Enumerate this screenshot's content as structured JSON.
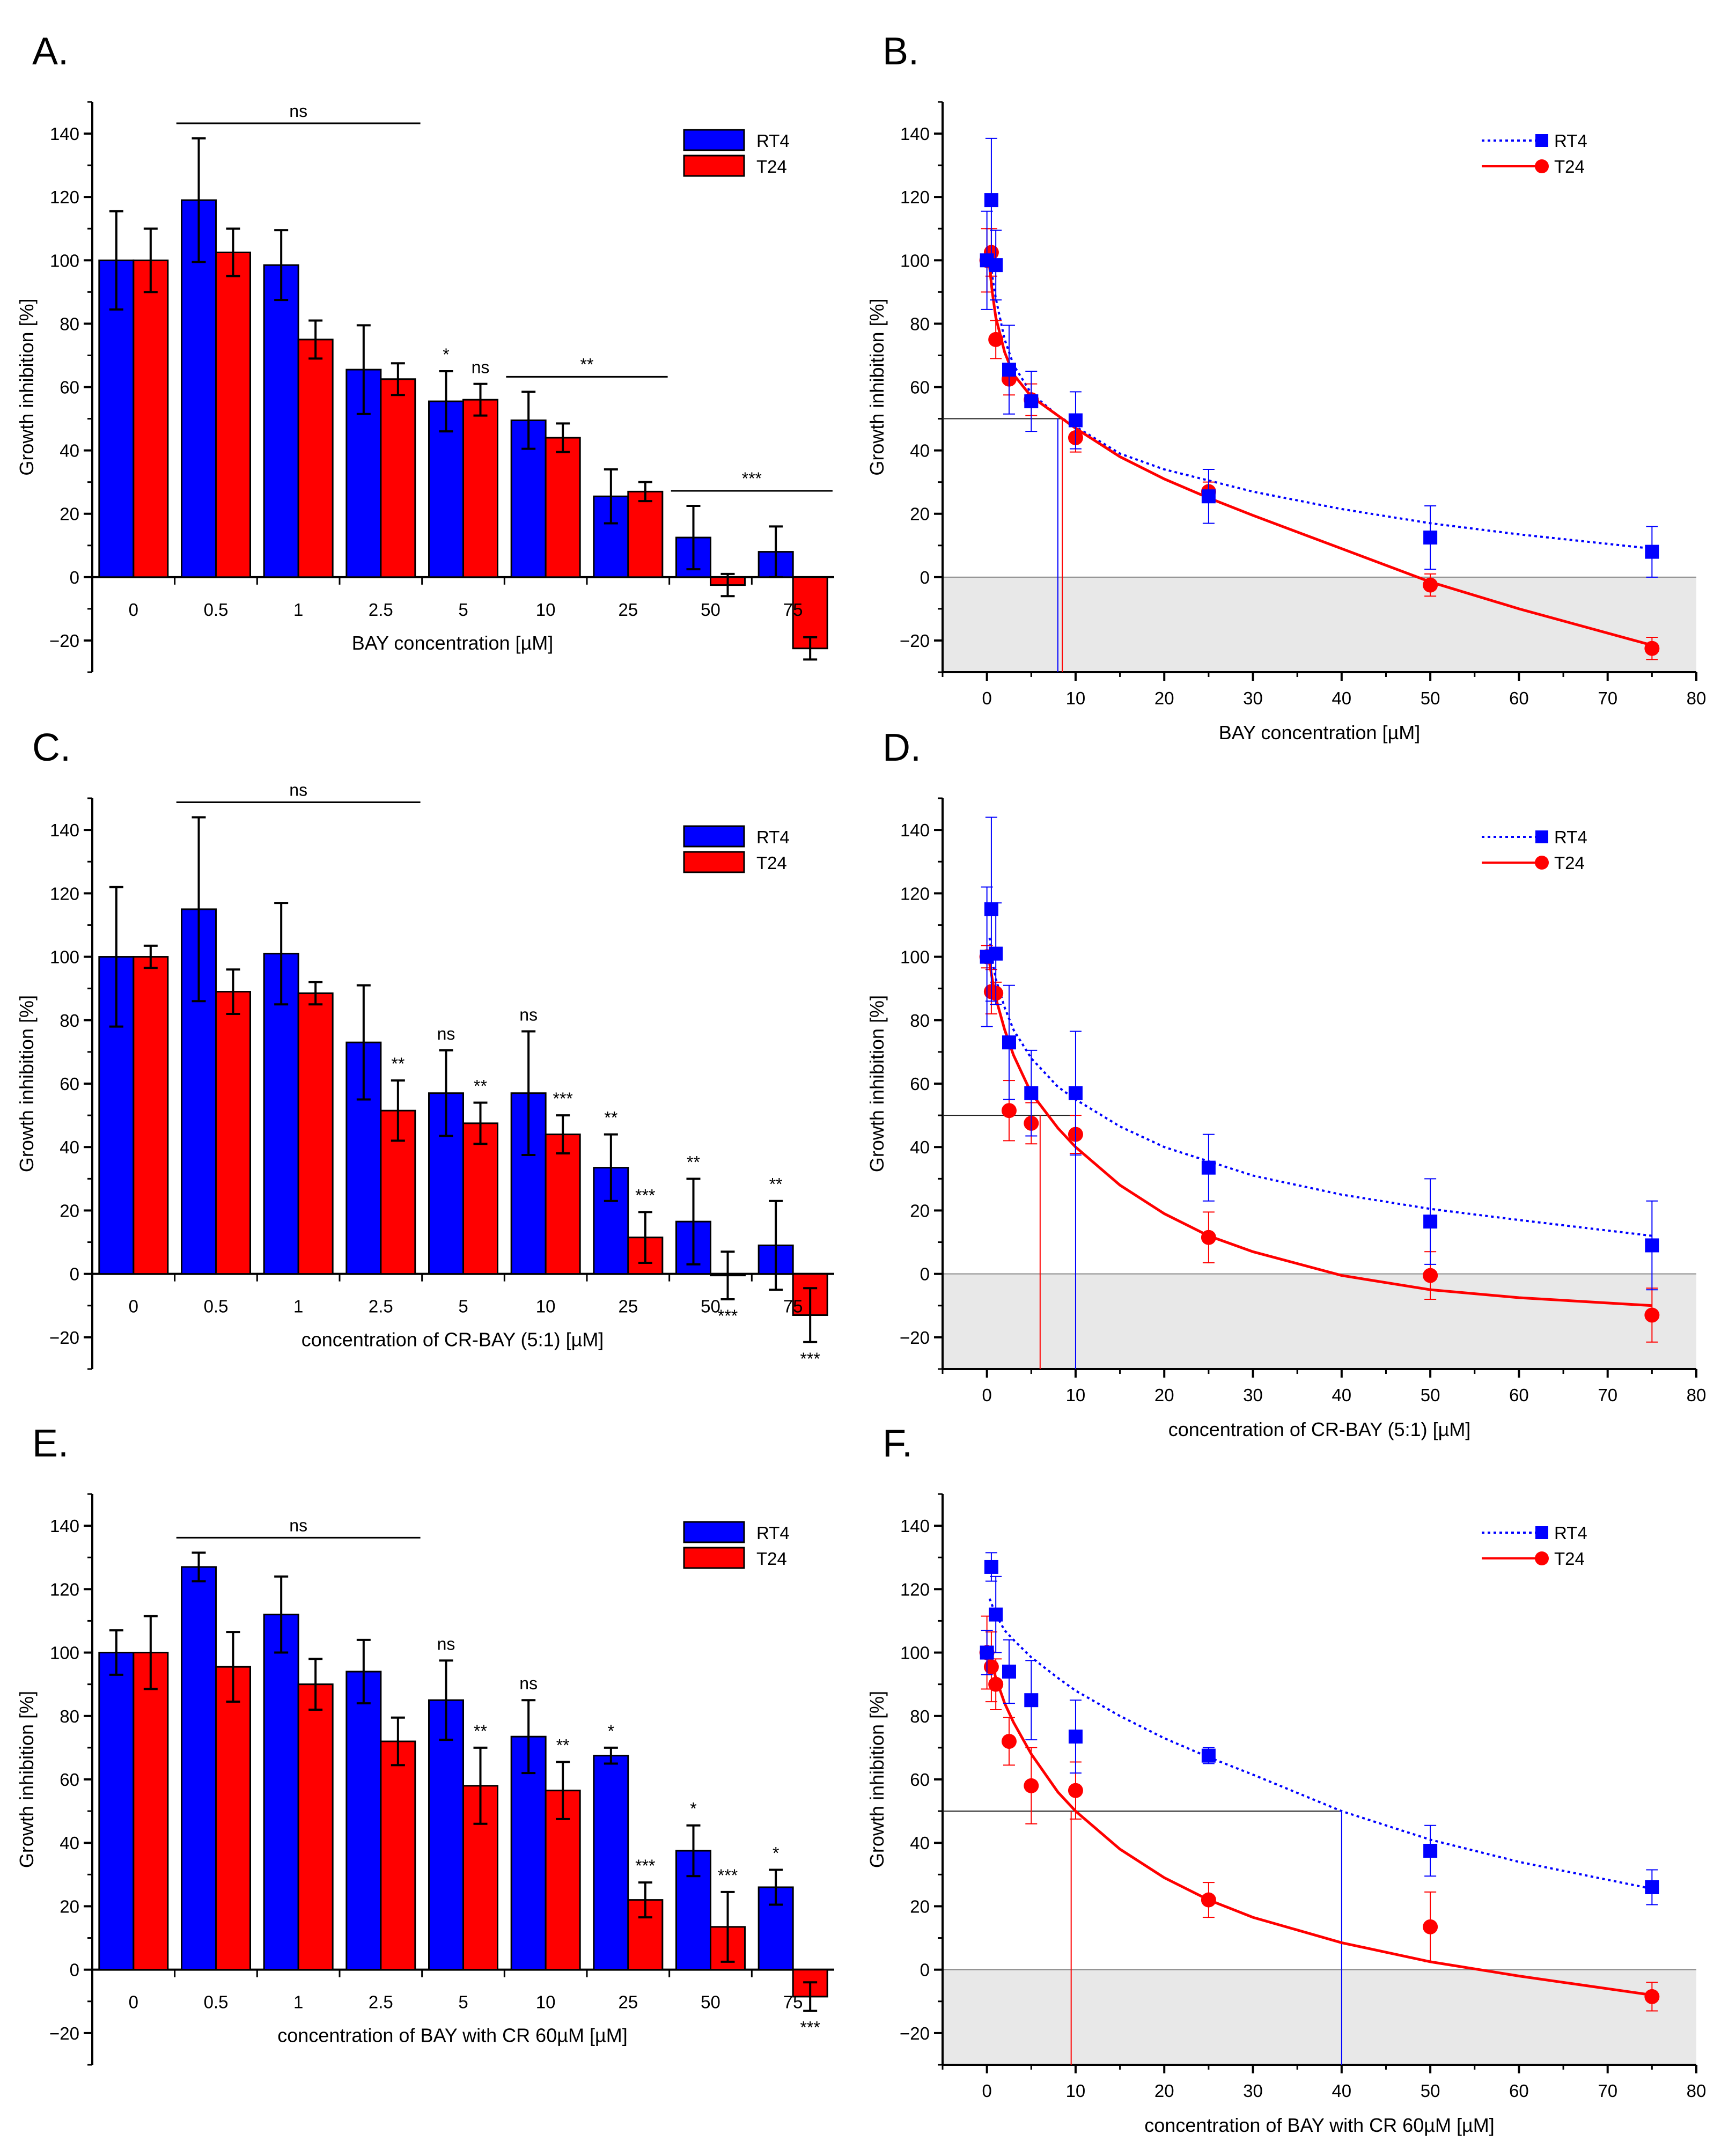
{
  "colors": {
    "rt4": "#0000ff",
    "t24": "#ff0000",
    "shade": "#e8e8e8"
  },
  "chart_data": [
    {
      "panel": "A.",
      "type": "bar",
      "xlabel": "BAY concentration [µM]",
      "ylabel": "Growth inhibition [%]",
      "ylim": [
        -30,
        150
      ],
      "yticks": [
        -20,
        0,
        20,
        40,
        60,
        80,
        100,
        120,
        140
      ],
      "categories": [
        "0",
        "0.5",
        "1",
        "2.5",
        "5",
        "10",
        "25",
        "50",
        "75"
      ],
      "legend_position": "top-right",
      "series": [
        {
          "name": "RT4",
          "values": [
            100,
            119,
            98.5,
            65.5,
            55.5,
            49.5,
            25.5,
            12.5,
            8
          ],
          "errors": [
            15.5,
            19.5,
            11,
            14,
            9.5,
            9,
            8.5,
            10,
            8
          ]
        },
        {
          "name": "T24",
          "values": [
            100,
            102.5,
            75,
            62.5,
            56,
            44,
            27,
            -2.5,
            -22.5
          ],
          "errors": [
            10,
            7.5,
            6,
            5,
            5,
            4.5,
            3,
            3.5,
            3.5
          ]
        }
      ],
      "annotations": [
        {
          "text": "ns",
          "bracket": [
            1,
            3
          ]
        },
        {
          "text": "*",
          "cat": 4,
          "series": 0
        },
        {
          "text": "ns",
          "cat": 4,
          "series": 1
        },
        {
          "text": "**",
          "bracket": [
            5,
            6
          ]
        },
        {
          "text": "***",
          "bracket": [
            7,
            8
          ]
        }
      ]
    },
    {
      "panel": "B.",
      "type": "scatter",
      "xlabel": "BAY concentration [µM]",
      "ylabel": "Growth inhibition [%]",
      "xlim": [
        -5,
        80
      ],
      "ylim": [
        -30,
        150
      ],
      "xticks": [
        0,
        10,
        20,
        30,
        40,
        50,
        60,
        70,
        80
      ],
      "yticks": [
        -20,
        0,
        20,
        40,
        60,
        80,
        100,
        120,
        140
      ],
      "x": [
        0,
        0.5,
        1,
        2.5,
        5,
        10,
        25,
        50,
        75
      ],
      "legend_position": "top-right",
      "series": [
        {
          "name": "RT4",
          "values": [
            100,
            119,
            98.5,
            65.5,
            55.5,
            49.5,
            25.5,
            12.5,
            8
          ],
          "errors": [
            15.5,
            19.5,
            11,
            14,
            9.5,
            9,
            8.5,
            10,
            8
          ],
          "fit": {
            "x": [
              0.3,
              0.6,
              1,
              2,
              3,
              5,
              8,
              10,
              15,
              20,
              25,
              30,
              40,
              50,
              60,
              75
            ],
            "y": [
              104,
              95,
              88,
              75,
              67,
              58,
              51,
              47.5,
              39,
              34,
              30.5,
              27,
              21.5,
              17,
              13.5,
              9
            ]
          },
          "ic50": 8
        },
        {
          "name": "T24",
          "values": [
            100,
            102.5,
            75,
            62.5,
            56,
            44,
            27,
            -2.5,
            -22.5
          ],
          "errors": [
            10,
            7.5,
            6,
            5,
            5,
            4.5,
            3,
            3.5,
            3.5
          ],
          "fit": {
            "x": [
              0.3,
              0.6,
              1,
              2,
              3,
              5,
              8,
              10,
              15,
              20,
              25,
              30,
              40,
              50,
              60,
              75
            ],
            "y": [
              98,
              90,
              82,
              71,
              64,
              57,
              51,
              47,
              38,
              31,
              25,
              19.5,
              9,
              -1.5,
              -10,
              -21.5
            ]
          },
          "ic50": 8.5
        }
      ]
    },
    {
      "panel": "C.",
      "type": "bar",
      "xlabel": "concentration of CR-BAY (5:1) [µM]",
      "ylabel": "Growth inhibition [%]",
      "ylim": [
        -30,
        150
      ],
      "yticks": [
        -20,
        0,
        20,
        40,
        60,
        80,
        100,
        120,
        140
      ],
      "categories": [
        "0",
        "0.5",
        "1",
        "2.5",
        "5",
        "10",
        "25",
        "50",
        "75"
      ],
      "legend_position": "top-right",
      "series": [
        {
          "name": "RT4",
          "values": [
            100,
            115,
            101,
            73,
            57,
            57,
            33.5,
            16.5,
            9
          ],
          "errors": [
            22,
            29,
            16,
            18,
            13.5,
            19.5,
            10.5,
            13.5,
            14
          ]
        },
        {
          "name": "T24",
          "values": [
            100,
            89,
            88.5,
            51.5,
            47.5,
            44,
            11.5,
            -0.5,
            -13
          ],
          "errors": [
            3.5,
            7,
            3.5,
            9.5,
            6.5,
            6,
            8,
            7.5,
            8.5
          ]
        }
      ],
      "annotations": [
        {
          "text": "ns",
          "bracket": [
            1,
            3
          ]
        },
        {
          "text": "**",
          "cat": 3,
          "series": 1,
          "pos": "above"
        },
        {
          "text": "ns",
          "cat": 4,
          "series": 0,
          "pos": "above"
        },
        {
          "text": "**",
          "cat": 4,
          "series": 1,
          "pos": "above"
        },
        {
          "text": "ns",
          "cat": 5,
          "series": 0,
          "pos": "above"
        },
        {
          "text": "***",
          "cat": 5,
          "series": 1,
          "pos": "above"
        },
        {
          "text": "**",
          "cat": 6,
          "series": 0,
          "pos": "above"
        },
        {
          "text": "***",
          "cat": 6,
          "series": 1,
          "pos": "above"
        },
        {
          "text": "**",
          "cat": 7,
          "series": 0,
          "pos": "above"
        },
        {
          "text": "***",
          "cat": 7,
          "series": 1,
          "pos": "below"
        },
        {
          "text": "**",
          "cat": 8,
          "series": 0,
          "pos": "above"
        },
        {
          "text": "***",
          "cat": 8,
          "series": 1,
          "pos": "below"
        }
      ]
    },
    {
      "panel": "D.",
      "type": "scatter",
      "xlabel": "concentration of CR-BAY (5:1) [µM]",
      "ylabel": "Growth inhibition [%]",
      "xlim": [
        -5,
        80
      ],
      "ylim": [
        -30,
        150
      ],
      "xticks": [
        0,
        10,
        20,
        30,
        40,
        50,
        60,
        70,
        80
      ],
      "yticks": [
        -20,
        0,
        20,
        40,
        60,
        80,
        100,
        120,
        140
      ],
      "x": [
        0,
        0.5,
        1,
        2.5,
        5,
        10,
        25,
        50,
        75
      ],
      "legend_position": "top-right",
      "series": [
        {
          "name": "RT4",
          "values": [
            100,
            115,
            101,
            73,
            57,
            57,
            33.5,
            16.5,
            9
          ],
          "errors": [
            22,
            29,
            16,
            18,
            13.5,
            19.5,
            10.5,
            13.5,
            14
          ],
          "fit": {
            "x": [
              0.3,
              0.6,
              1,
              2,
              3,
              5,
              8,
              10,
              15,
              20,
              25,
              30,
              40,
              50,
              60,
              75
            ],
            "y": [
              106,
              99,
              93,
              84,
              77,
              68,
              59,
              55,
              46.5,
              40,
              35.5,
              31,
              25,
              20.5,
              17,
              12
            ]
          },
          "ic50": 10
        },
        {
          "name": "T24",
          "values": [
            100,
            89,
            88.5,
            51.5,
            47.5,
            44,
            11.5,
            -0.5,
            -13
          ],
          "errors": [
            3.5,
            7,
            3.5,
            9.5,
            6.5,
            6,
            8,
            7.5,
            8.5
          ],
          "fit": {
            "x": [
              0.3,
              0.6,
              1,
              2,
              3,
              5,
              8,
              10,
              15,
              20,
              25,
              30,
              40,
              50,
              60,
              75
            ],
            "y": [
              98,
              93,
              87,
              77,
              69,
              57,
              46,
              40,
              28,
              19,
              12,
              7,
              -0.5,
              -5,
              -7.5,
              -10
            ]
          },
          "ic50": 6
        }
      ]
    },
    {
      "panel": "E.",
      "type": "bar",
      "xlabel": "concentration of BAY with CR 60µM [µM]",
      "ylabel": "Growth inhibition [%]",
      "ylim": [
        -30,
        150
      ],
      "yticks": [
        -20,
        0,
        20,
        40,
        60,
        80,
        100,
        120,
        140
      ],
      "categories": [
        "0",
        "0.5",
        "1",
        "2.5",
        "5",
        "10",
        "25",
        "50",
        "75"
      ],
      "legend_position": "top-right",
      "series": [
        {
          "name": "RT4",
          "values": [
            100,
            127,
            112,
            94,
            85,
            73.5,
            67.5,
            37.5,
            26
          ],
          "errors": [
            7,
            4.5,
            12,
            10,
            12.5,
            11.5,
            2.5,
            8,
            5.5
          ]
        },
        {
          "name": "T24",
          "values": [
            100,
            95.5,
            90,
            72,
            58,
            56.5,
            22,
            13.5,
            -8.5
          ],
          "errors": [
            11.5,
            11,
            8,
            7.5,
            12,
            9,
            5.5,
            11,
            4.5
          ]
        }
      ],
      "annotations": [
        {
          "text": "ns",
          "bracket": [
            1,
            3
          ]
        },
        {
          "text": "ns",
          "cat": 4,
          "series": 0,
          "pos": "above"
        },
        {
          "text": "**",
          "cat": 4,
          "series": 1,
          "pos": "above"
        },
        {
          "text": "ns",
          "cat": 5,
          "series": 0,
          "pos": "above"
        },
        {
          "text": "**",
          "cat": 5,
          "series": 1,
          "pos": "above"
        },
        {
          "text": "*",
          "cat": 6,
          "series": 0,
          "pos": "above"
        },
        {
          "text": "***",
          "cat": 6,
          "series": 1,
          "pos": "above"
        },
        {
          "text": "*",
          "cat": 7,
          "series": 0,
          "pos": "above"
        },
        {
          "text": "***",
          "cat": 7,
          "series": 1,
          "pos": "above"
        },
        {
          "text": "*",
          "cat": 8,
          "series": 0,
          "pos": "above"
        },
        {
          "text": "***",
          "cat": 8,
          "series": 1,
          "pos": "below"
        }
      ]
    },
    {
      "panel": "F.",
      "type": "scatter",
      "xlabel": "concentration of BAY with CR 60µM [µM]",
      "ylabel": "Growth inhibition [%]",
      "xlim": [
        -5,
        80
      ],
      "ylim": [
        -30,
        150
      ],
      "xticks": [
        0,
        10,
        20,
        30,
        40,
        50,
        60,
        70,
        80
      ],
      "yticks": [
        -20,
        0,
        20,
        40,
        60,
        80,
        100,
        120,
        140
      ],
      "x": [
        0,
        0.5,
        1,
        2.5,
        5,
        10,
        25,
        50,
        75
      ],
      "legend_position": "top-right",
      "series": [
        {
          "name": "RT4",
          "values": [
            100,
            127,
            112,
            94,
            85,
            73.5,
            67.5,
            37.5,
            26
          ],
          "errors": [
            7,
            4.5,
            12,
            10,
            12.5,
            11.5,
            2.5,
            8,
            5.5
          ],
          "fit": {
            "x": [
              0.3,
              1,
              2,
              3,
              5,
              8,
              10,
              15,
              20,
              25,
              30,
              40,
              50,
              60,
              75
            ],
            "y": [
              117,
              112,
              107,
              104,
              98.5,
              92,
              88,
              80,
              73,
              67,
              61.5,
              50,
              41,
              34,
              25.5
            ]
          },
          "ic50": 40
        },
        {
          "name": "T24",
          "values": [
            100,
            95.5,
            90,
            72,
            58,
            56.5,
            22,
            13.5,
            -8.5
          ],
          "errors": [
            11.5,
            11,
            8,
            7.5,
            12,
            9,
            5.5,
            11,
            4.5
          ],
          "fit": {
            "x": [
              0.3,
              0.6,
              1,
              2,
              3,
              5,
              8,
              10,
              15,
              20,
              25,
              30,
              40,
              50,
              60,
              75
            ],
            "y": [
              100,
              96,
              92,
              84,
              78,
              68,
              56,
              50,
              38,
              29,
              22,
              16.5,
              8.5,
              2.5,
              -2,
              -8
            ]
          },
          "ic50": 9.5
        }
      ]
    }
  ]
}
